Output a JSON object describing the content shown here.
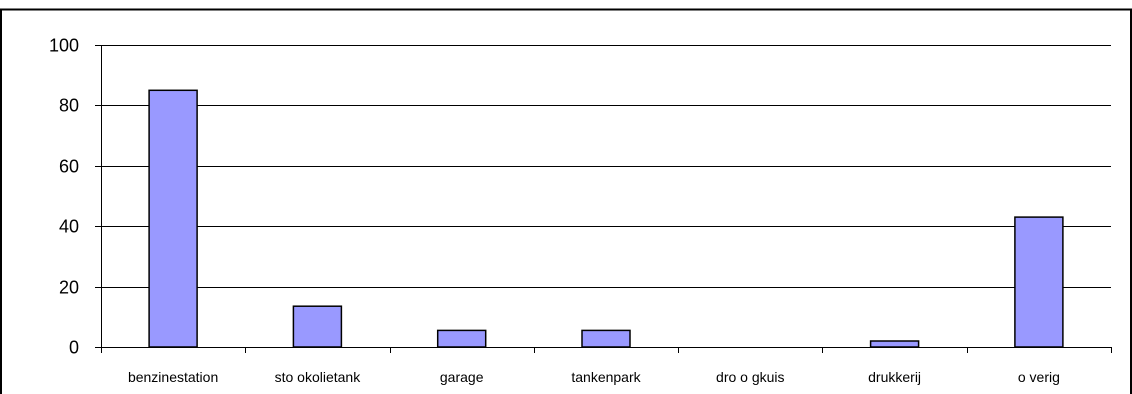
{
  "chart_data": {
    "type": "bar",
    "categories": [
      "benzinestation",
      "stookolietank",
      "garage",
      "tankenpark",
      "droogkuis",
      "drukkerij",
      "overig"
    ],
    "category_labels": [
      "benzinestation",
      "sto okolietank",
      "garage",
      "tankenpark",
      "dro o gkuis",
      "drukkerij",
      "o verig"
    ],
    "values": [
      85,
      13.5,
      5.5,
      5.5,
      0,
      2,
      43
    ],
    "ylim": [
      0,
      100
    ],
    "yticks": [
      "0",
      "20",
      "40",
      "60",
      "80",
      "100"
    ],
    "title": "",
    "xlabel": "",
    "ylabel": "",
    "grid": true,
    "legend": "none",
    "bar_color": "#9999ff",
    "bar_edge_color": "#000000"
  }
}
